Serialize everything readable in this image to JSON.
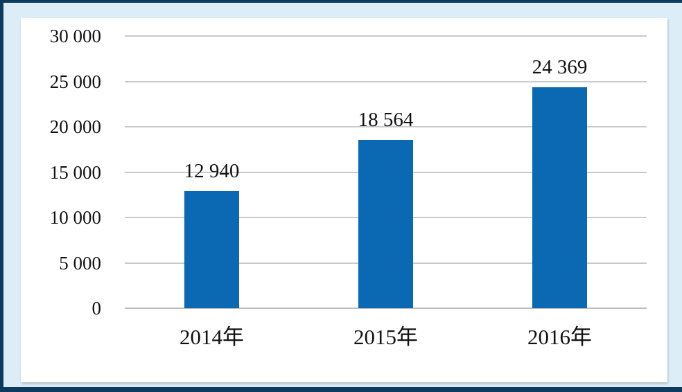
{
  "chart_data": {
    "type": "bar",
    "title": "",
    "xlabel": "",
    "ylabel": "",
    "categories": [
      "2014年",
      "2015年",
      "2016年"
    ],
    "values": [
      12940,
      18564,
      24369
    ],
    "value_labels": [
      "12 940",
      "18 564",
      "24 369"
    ],
    "ylim": [
      0,
      30000
    ],
    "y_tick_interval": 5000,
    "y_ticks": [
      0,
      5000,
      10000,
      15000,
      20000,
      25000,
      30000
    ],
    "y_tick_labels": [
      "0",
      "5 000",
      "10 000",
      "15 000",
      "20 000",
      "25 000",
      "30 000"
    ],
    "grid": true,
    "legend": false
  },
  "colors": {
    "bar": "#0B68B2",
    "frame_border": "#0C3B5D",
    "frame_background": "#DDEDF8",
    "panel_background": "#FFFFFF",
    "gridline": "#C9C9C9",
    "axis_line": "#BDBDBD",
    "text": "#121212"
  }
}
